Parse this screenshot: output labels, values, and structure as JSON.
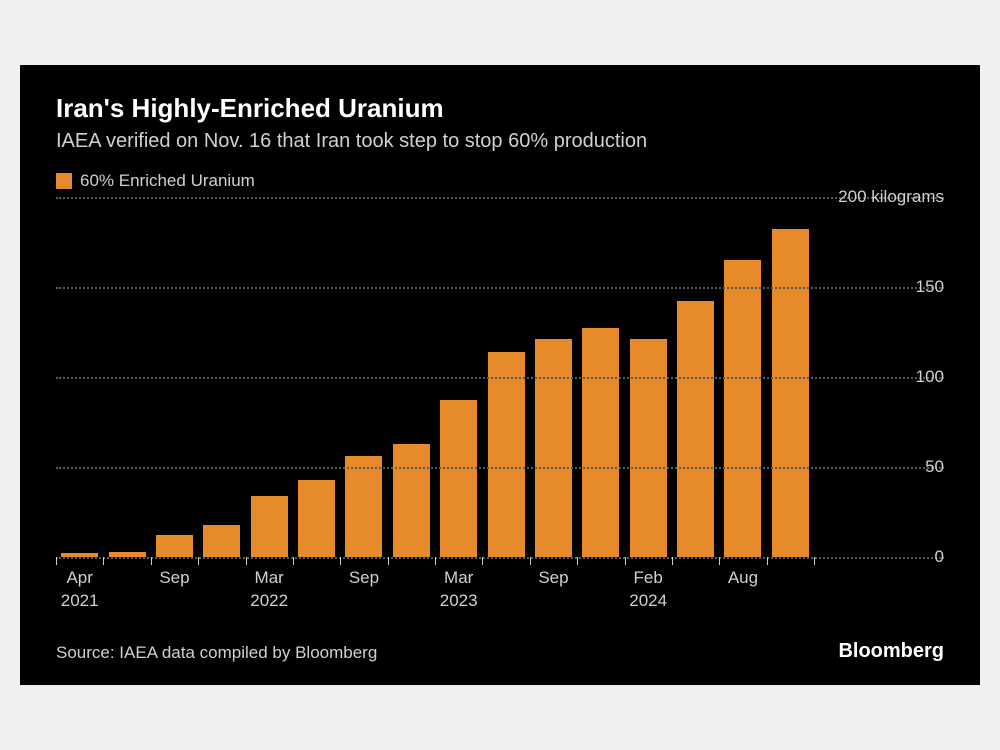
{
  "chart": {
    "type": "bar",
    "title": "Iran's Highly-Enriched Uranium",
    "subtitle": "IAEA verified on Nov. 16 that Iran took step to stop 60% production",
    "title_fontsize": 26,
    "subtitle_fontsize": 20,
    "title_color": "#ffffff",
    "subtitle_color": "#d0d0d0",
    "background_color": "#000000",
    "grid_color": "#5a5a5a",
    "text_color": "#d0d0d0",
    "legend": {
      "swatch_color": "#e78b2a",
      "label": "60% Enriched Uranium",
      "fontsize": 17
    },
    "y": {
      "min": 0,
      "max": 200,
      "ticks": [
        0,
        50,
        100,
        150,
        200
      ],
      "unit_label": "200 kilograms",
      "label_fontsize": 17
    },
    "x": {
      "labels": [
        {
          "index": 0,
          "text": "Apr\n2021"
        },
        {
          "index": 2,
          "text": "Sep"
        },
        {
          "index": 4,
          "text": "Mar\n2022"
        },
        {
          "index": 6,
          "text": "Sep"
        },
        {
          "index": 8,
          "text": "Mar\n2023"
        },
        {
          "index": 10,
          "text": "Sep"
        },
        {
          "index": 12,
          "text": "Feb\n2024"
        },
        {
          "index": 14,
          "text": "Aug"
        }
      ],
      "label_fontsize": 17
    },
    "series": {
      "name": "60% Enriched Uranium",
      "color": "#e78b2a",
      "bar_width_ratio": 0.78,
      "values": [
        2,
        3,
        12,
        18,
        34,
        43,
        56,
        63,
        87,
        114,
        121,
        127,
        121,
        142,
        165,
        182
      ]
    },
    "source": "Source: IAEA data compiled by Bloomberg",
    "brand": "Bloomberg",
    "brand_color": "#ffffff"
  }
}
